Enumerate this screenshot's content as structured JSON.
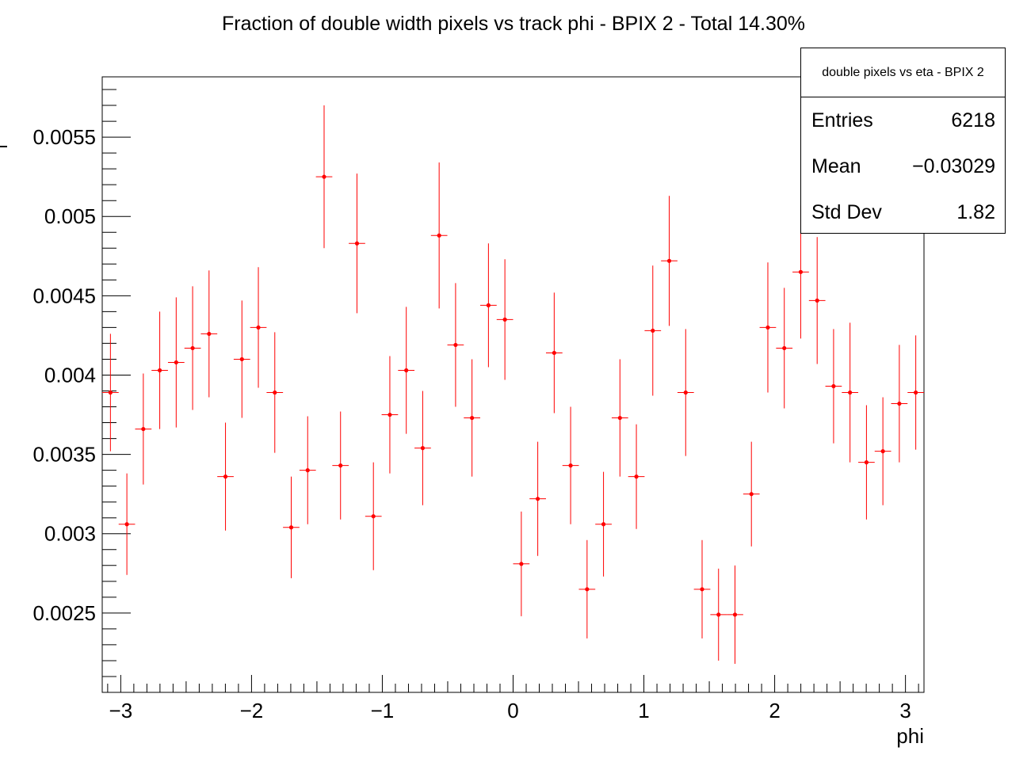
{
  "chart_data": {
    "type": "scatter",
    "title": "Fraction of double width pixels vs track phi - BPIX 2 - Total 14.30%",
    "xlabel": "phi",
    "ylabel": "",
    "xlim": [
      -3.1416,
      3.1416
    ],
    "ylim": [
      0.002,
      0.00588
    ],
    "x_ticks": [
      -3,
      -2,
      -1,
      0,
      1,
      2,
      3
    ],
    "x_tick_labels": [
      "−3",
      "−2",
      "−1",
      "0",
      "1",
      "2",
      "3"
    ],
    "y_ticks": [
      0.0025,
      0.003,
      0.0035,
      0.004,
      0.0045,
      0.005,
      0.0055
    ],
    "y_tick_labels": [
      "0.0025",
      "0.003",
      "0.0035",
      "0.004",
      "0.0045",
      "0.005",
      "0.0055"
    ],
    "grid": false,
    "marker_color": "#ff0000",
    "series": [
      {
        "name": "double pixels vs eta - BPIX 2",
        "bin_width": 0.12566,
        "x": [
          -3.0788,
          -2.9531,
          -2.8274,
          -2.7018,
          -2.5761,
          -2.4504,
          -2.3248,
          -2.1991,
          -2.0735,
          -1.9478,
          -1.8221,
          -1.6965,
          -1.5708,
          -1.4451,
          -1.3195,
          -1.1938,
          -1.0681,
          -0.9425,
          -0.8168,
          -0.6912,
          -0.5655,
          -0.4398,
          -0.3142,
          -0.1885,
          -0.0628,
          0.0628,
          0.1885,
          0.3142,
          0.4398,
          0.5655,
          0.6912,
          0.8168,
          0.9425,
          1.0681,
          1.1938,
          1.3195,
          1.4451,
          1.5708,
          1.6965,
          1.8221,
          1.9478,
          2.0735,
          2.1991,
          2.3248,
          2.4504,
          2.5761,
          2.7018,
          2.8274,
          2.9531,
          3.0788
        ],
        "y": [
          0.00389,
          0.00306,
          0.00366,
          0.00403,
          0.00408,
          0.00417,
          0.00426,
          0.00336,
          0.0041,
          0.0043,
          0.00389,
          0.00304,
          0.0034,
          0.00525,
          0.00343,
          0.00483,
          0.00311,
          0.00375,
          0.00403,
          0.00354,
          0.00488,
          0.00419,
          0.00373,
          0.00444,
          0.00435,
          0.00281,
          0.00322,
          0.00414,
          0.00343,
          0.00265,
          0.00306,
          0.00373,
          0.00336,
          0.00428,
          0.00472,
          0.00389,
          0.00265,
          0.00249,
          0.00249,
          0.00325,
          0.0043,
          0.00417,
          0.00465,
          0.00447,
          0.00393,
          0.00389,
          0.00345,
          0.00352,
          0.00382,
          0.00389
        ],
        "yerr": [
          0.00037,
          0.00032,
          0.00035,
          0.00037,
          0.00041,
          0.00039,
          0.0004,
          0.00034,
          0.00037,
          0.00038,
          0.00038,
          0.00032,
          0.00034,
          0.00045,
          0.00034,
          0.00044,
          0.00034,
          0.00037,
          0.0004,
          0.00036,
          0.00046,
          0.00039,
          0.00037,
          0.00039,
          0.00038,
          0.00033,
          0.00036,
          0.00038,
          0.00037,
          0.00031,
          0.00033,
          0.00037,
          0.00033,
          0.00041,
          0.00041,
          0.0004,
          0.00031,
          0.00029,
          0.00031,
          0.00033,
          0.00041,
          0.00038,
          0.00042,
          0.0004,
          0.00036,
          0.00044,
          0.00036,
          0.00034,
          0.00037,
          0.00036
        ]
      }
    ]
  },
  "stats": {
    "title": "double pixels vs eta - BPIX 2",
    "rows": [
      {
        "label": "Entries",
        "value": "6218"
      },
      {
        "label": "Mean",
        "value": "−0.03029"
      },
      {
        "label": "Std Dev",
        "value": "1.82"
      }
    ]
  }
}
